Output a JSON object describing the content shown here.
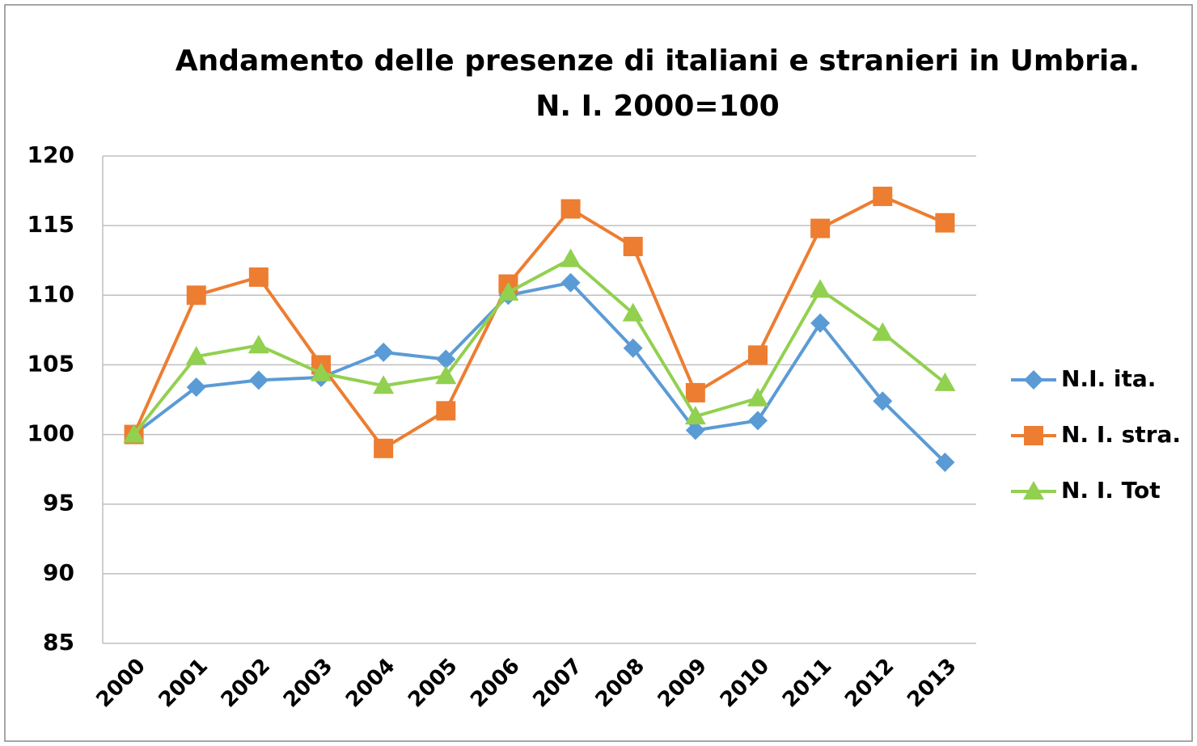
{
  "chart_data": {
    "type": "line",
    "title": "Andamento delle presenze di italiani e stranieri in Umbria. N. I. 2000=100",
    "categories": [
      "2000",
      "2001",
      "2002",
      "2003",
      "2004",
      "2005",
      "2006",
      "2007",
      "2008",
      "2009",
      "2010",
      "2011",
      "2012",
      "2013"
    ],
    "series": [
      {
        "name": "N.I. ita.",
        "color": "#5b9bd5",
        "marker": "diamond",
        "values": [
          100,
          103.4,
          103.9,
          104.1,
          105.9,
          105.4,
          110.0,
          110.9,
          106.2,
          100.3,
          101.0,
          108.0,
          102.4,
          98.0
        ]
      },
      {
        "name": "N. I. stra.",
        "color": "#ed7d31",
        "marker": "square",
        "values": [
          100,
          110.0,
          111.3,
          105.0,
          99.0,
          101.7,
          110.8,
          116.2,
          113.5,
          103.0,
          105.7,
          114.8,
          117.1,
          115.2
        ]
      },
      {
        "name": "N. I. Tot",
        "color": "#92d050",
        "marker": "triangle",
        "values": [
          100,
          105.6,
          106.4,
          104.4,
          103.5,
          104.2,
          110.2,
          112.6,
          108.7,
          101.3,
          102.6,
          110.4,
          107.3,
          103.7
        ]
      }
    ],
    "ylim": [
      85,
      120
    ],
    "yticks": [
      85,
      90,
      95,
      100,
      105,
      110,
      115,
      120
    ],
    "grid": true,
    "legend": "right"
  }
}
